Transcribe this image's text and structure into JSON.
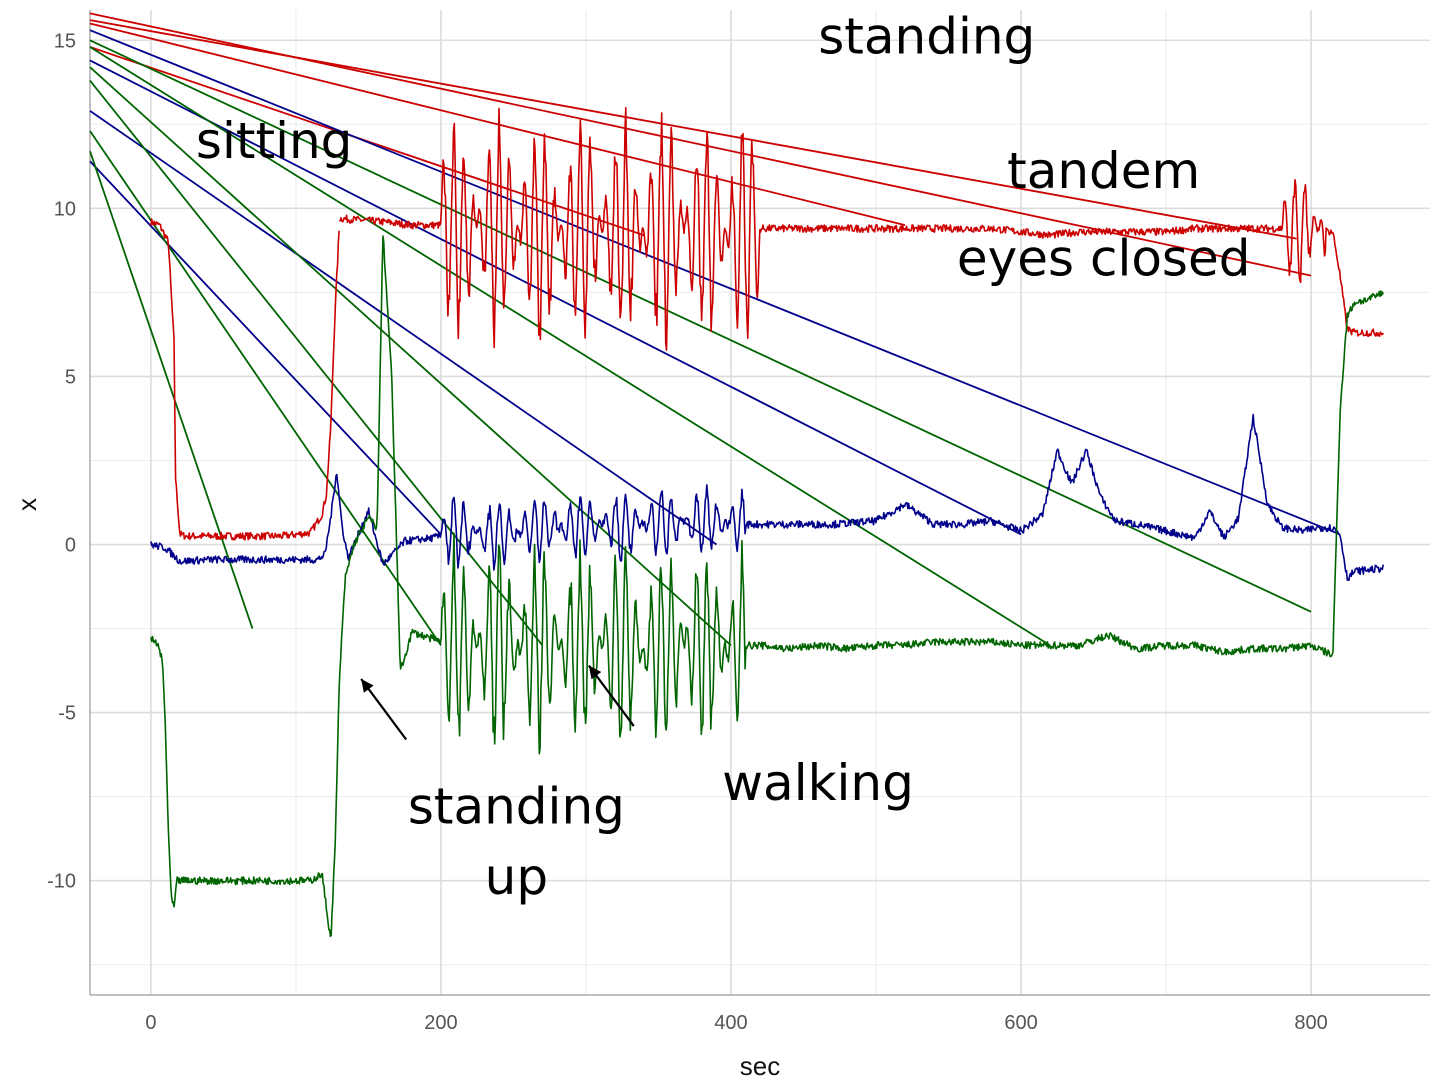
{
  "chart_data": {
    "type": "line",
    "title": "",
    "xlabel": "sec",
    "ylabel": "x",
    "xlim": [
      -42,
      882
    ],
    "ylim": [
      -13.4,
      15.9
    ],
    "xticks": [
      0,
      200,
      400,
      600,
      800
    ],
    "yticks": [
      -10,
      -5,
      0,
      5,
      10,
      15
    ],
    "xtick_labels": [
      "0",
      "200",
      "400",
      "600",
      "800"
    ],
    "ytick_labels": [
      "-10",
      "-5",
      "0",
      "5",
      "10",
      "15"
    ],
    "grid": true,
    "legend": "none",
    "series": [
      {
        "color": "#cc0000",
        "segments": [
          {
            "x": [
              0,
              6,
              12,
              16,
              17,
              20,
              24,
              30,
              60,
              90,
              110,
              118,
              121,
              124,
              127,
              130
            ],
            "y": [
              9.6,
              9.5,
              9.0,
              6.0,
              2.0,
              0.3,
              0.25,
              0.25,
              0.25,
              0.25,
              0.35,
              0.9,
              1.5,
              3.5,
              7.0,
              9.5
            ]
          },
          {
            "x": [
              130,
              160,
              180,
              200,
              220,
              240,
              260,
              280,
              300,
              320,
              340,
              360,
              380,
              400,
              420,
              440,
              460,
              480,
              500,
              520,
              540,
              560,
              580,
              600,
              620,
              640,
              660,
              680,
              700,
              720,
              740,
              760,
              780,
              800,
              815,
              820,
              825,
              830,
              850
            ],
            "y": [
              9.7,
              9.6,
              9.5,
              9.5,
              9.4,
              9.4,
              9.4,
              9.3,
              9.4,
              9.4,
              9.4,
              9.4,
              9.3,
              9.3,
              9.4,
              9.4,
              9.4,
              9.4,
              9.4,
              9.4,
              9.4,
              9.4,
              9.4,
              9.3,
              9.2,
              9.3,
              9.3,
              9.3,
              9.3,
              9.4,
              9.4,
              9.4,
              9.4,
              9.4,
              9.3,
              8.0,
              6.4,
              6.3,
              6.3
            ]
          }
        ]
      },
      {
        "color": "#00008b",
        "segments": [
          {
            "x": [
              0,
              10,
              20,
              40,
              60,
              80,
              100,
              115,
              120,
              124,
              128,
              132,
              136,
              140,
              150,
              160,
              175,
              195,
              210,
              230,
              250,
              270,
              290,
              310,
              330,
              350,
              370,
              390,
              410,
              430,
              450,
              470,
              500,
              520,
              540,
              560,
              580,
              600,
              615,
              625,
              635,
              645,
              655,
              665,
              680,
              700,
              720,
              730,
              740,
              750,
              760,
              770,
              780,
              795,
              805,
              815,
              820,
              825,
              830,
              850
            ],
            "y": [
              0.0,
              -0.1,
              -0.5,
              -0.45,
              -0.45,
              -0.45,
              -0.45,
              -0.45,
              -0.3,
              0.8,
              2.2,
              0.5,
              -0.4,
              0.0,
              1.0,
              -0.6,
              0.1,
              0.2,
              0.4,
              0.3,
              0.4,
              0.5,
              0.5,
              0.6,
              0.6,
              0.7,
              0.6,
              0.7,
              0.6,
              0.6,
              0.6,
              0.6,
              0.7,
              1.2,
              0.6,
              0.6,
              0.7,
              0.4,
              0.9,
              2.8,
              1.8,
              2.8,
              1.4,
              0.7,
              0.6,
              0.4,
              0.2,
              1.0,
              0.2,
              0.8,
              3.8,
              1.2,
              0.5,
              0.4,
              0.5,
              0.5,
              0.3,
              -1.0,
              -0.8,
              -0.7
            ]
          }
        ]
      },
      {
        "color": "#006400",
        "segments": [
          {
            "x": [
              0,
              5,
              8,
              10,
              12,
              14,
              16,
              18,
              20,
              24,
              40,
              60,
              80,
              100,
              110,
              118,
              121,
              124,
              127,
              130,
              134,
              140,
              150,
              156,
              160,
              166,
              172,
              180,
              200,
              220,
              240,
              260,
              280,
              300,
              320,
              340,
              360,
              380,
              400,
              420,
              440,
              460,
              480,
              500,
              520,
              540,
              560,
              580,
              600,
              620,
              640,
              660,
              680,
              700,
              720,
              740,
              760,
              780,
              800,
              810,
              815,
              820,
              825,
              830,
              840,
              850
            ],
            "y": [
              -2.8,
              -3.0,
              -3.5,
              -5.5,
              -8.5,
              -10.5,
              -10.8,
              -10.0,
              -10.0,
              -10.0,
              -10.0,
              -10.0,
              -10.0,
              -10.0,
              -10.0,
              -9.8,
              -10.8,
              -11.8,
              -9.0,
              -4.0,
              -1.0,
              0.0,
              0.8,
              0.5,
              9.3,
              5.0,
              -3.8,
              -2.6,
              -2.9,
              -3.1,
              -3.0,
              -3.0,
              -3.0,
              -3.0,
              -3.0,
              -3.1,
              -3.0,
              -3.0,
              -3.0,
              -3.0,
              -3.1,
              -3.0,
              -3.1,
              -3.0,
              -3.0,
              -2.9,
              -2.9,
              -2.9,
              -3.0,
              -3.0,
              -3.0,
              -2.7,
              -3.1,
              -3.0,
              -3.0,
              -3.2,
              -3.1,
              -3.1,
              -3.0,
              -3.2,
              -3.3,
              4.0,
              6.8,
              7.2,
              7.3,
              7.5
            ]
          }
        ]
      }
    ],
    "oscillations": [
      {
        "color": "#cc0000",
        "x_start": 200,
        "x_end": 420,
        "amplitude": 3.8
      },
      {
        "color": "#cc0000",
        "x_start": 780,
        "x_end": 810,
        "amplitude": 1.8
      },
      {
        "color": "#00008b",
        "x_start": 200,
        "x_end": 410,
        "amplitude": 1.2
      },
      {
        "color": "#006400",
        "x_start": 200,
        "x_end": 410,
        "amplitude": 3.4
      }
    ],
    "overlay_lines": [
      {
        "color": "#cc0000",
        "x1": -42,
        "y1": 15.8,
        "x2": 800,
        "y2": 8.0
      },
      {
        "color": "#cc0000",
        "x1": -42,
        "y1": 15.6,
        "x2": 790,
        "y2": 9.1
      },
      {
        "color": "#cc0000",
        "x1": -42,
        "y1": 15.5,
        "x2": 520,
        "y2": 9.5
      },
      {
        "color": "#cc0000",
        "x1": -42,
        "y1": 14.8,
        "x2": 340,
        "y2": 9.2
      },
      {
        "color": "#00008b",
        "x1": -42,
        "y1": 15.3,
        "x2": 820,
        "y2": 0.3
      },
      {
        "color": "#00008b",
        "x1": -42,
        "y1": 14.4,
        "x2": 600,
        "y2": 0.3
      },
      {
        "color": "#00008b",
        "x1": -42,
        "y1": 12.9,
        "x2": 390,
        "y2": 0.0
      },
      {
        "color": "#00008b",
        "x1": -42,
        "y1": 11.4,
        "x2": 200,
        "y2": 0.3
      },
      {
        "color": "#006400",
        "x1": -42,
        "y1": 15.0,
        "x2": 800,
        "y2": -2.0
      },
      {
        "color": "#006400",
        "x1": -42,
        "y1": 14.8,
        "x2": 620,
        "y2": -3.0
      },
      {
        "color": "#006400",
        "x1": -42,
        "y1": 14.2,
        "x2": 400,
        "y2": -3.0
      },
      {
        "color": "#006400",
        "x1": -42,
        "y1": 13.8,
        "x2": 270,
        "y2": -3.0
      },
      {
        "color": "#006400",
        "x1": -42,
        "y1": 12.3,
        "x2": 200,
        "y2": -3.0
      },
      {
        "color": "#006400",
        "x1": -42,
        "y1": 11.7,
        "x2": 70,
        "y2": -2.5
      }
    ],
    "annotations": [
      {
        "text": "standing",
        "x": 535,
        "y": 14.6
      },
      {
        "text": "sitting",
        "x": 85,
        "y": 11.5
      },
      {
        "text": "tandem",
        "x": 657,
        "y": 10.6
      },
      {
        "text": "eyes closed",
        "x": 657,
        "y": 8.0
      },
      {
        "text": "standing",
        "x": 252,
        "y": -8.3
      },
      {
        "text": "up",
        "x": 252,
        "y": -10.4
      },
      {
        "text": "walking",
        "x": 460,
        "y": -7.6
      }
    ],
    "arrows": [
      {
        "x1": 176,
        "y1": -5.8,
        "x2": 145,
        "y2": -4.0
      },
      {
        "x1": 333,
        "y1": -5.4,
        "x2": 302,
        "y2": -3.6
      }
    ]
  }
}
